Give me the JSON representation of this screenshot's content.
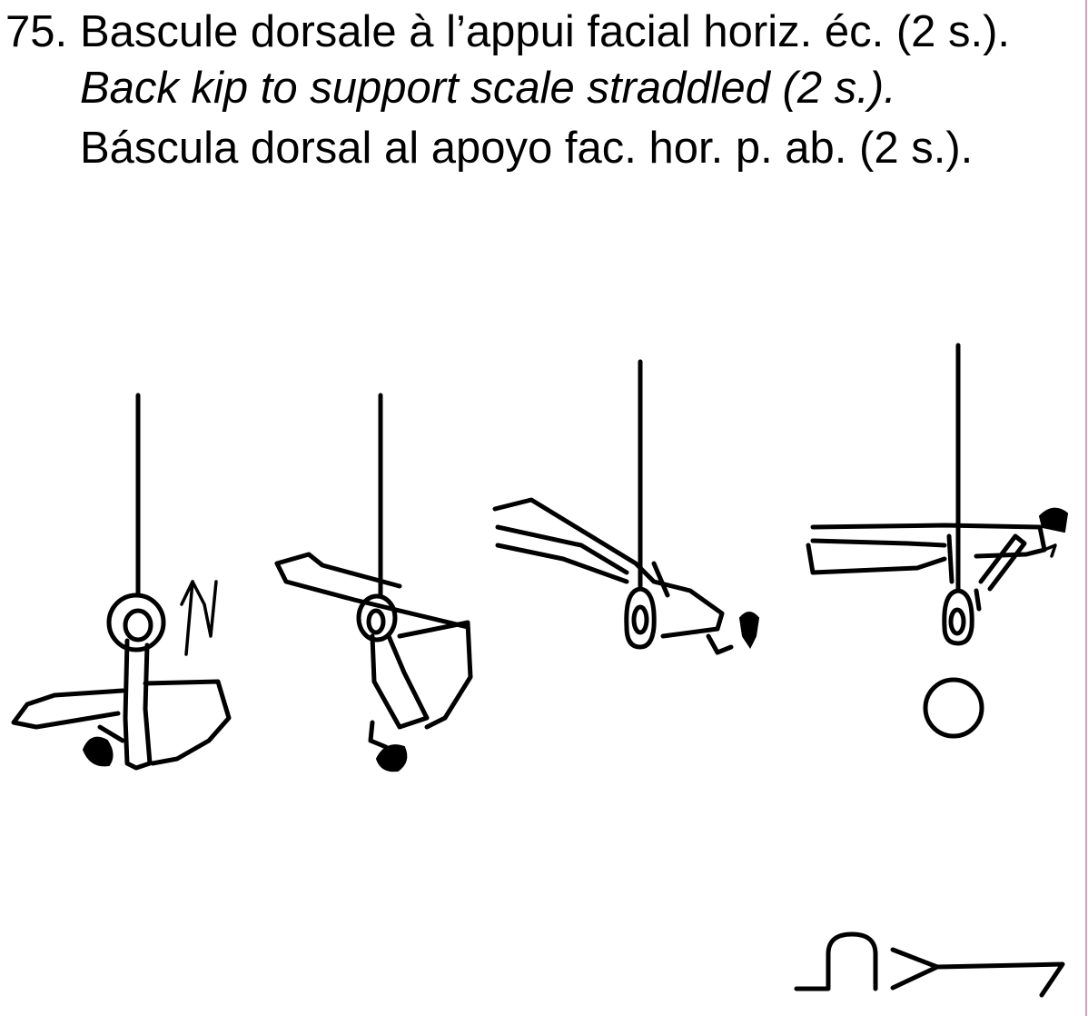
{
  "element": {
    "number": "75.",
    "name_fr": "Bascule dorsale à l’appui facial horiz. éc. (2 s.).",
    "name_en": "Back kip to support scale straddled (2 s.).",
    "name_es": "Báscula dorsal al apoyo fac. hor. p. ab. (2 s.)."
  },
  "figures": [
    {
      "name": "figure-1-hang-pike"
    },
    {
      "name": "figure-2-kip-swing"
    },
    {
      "name": "figure-3-rising"
    },
    {
      "name": "figure-4-support-scale"
    }
  ]
}
